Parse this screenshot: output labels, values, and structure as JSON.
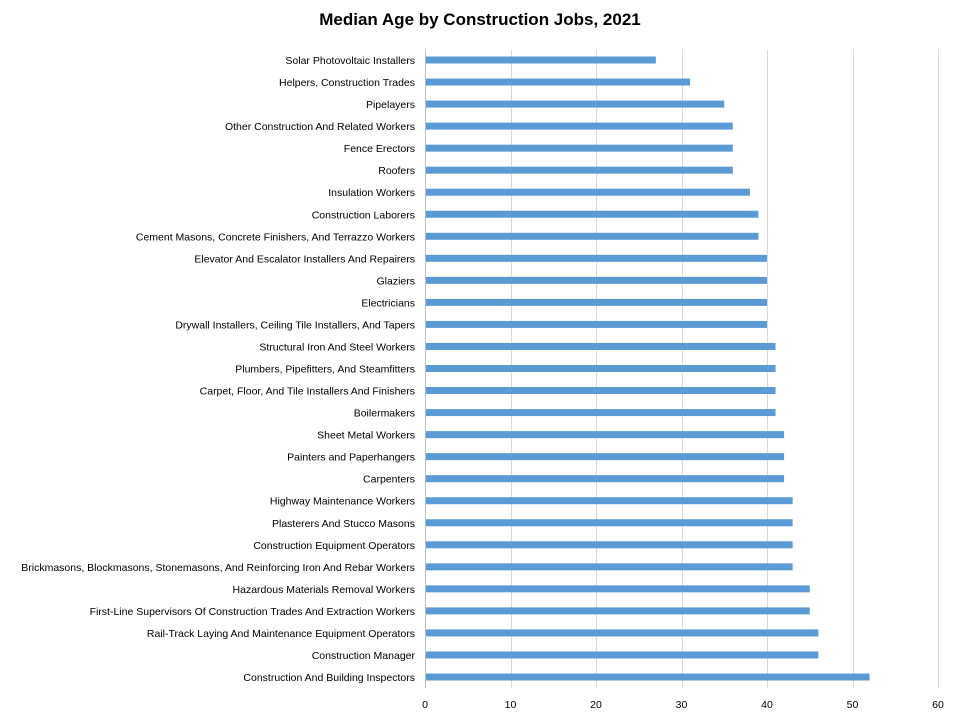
{
  "chart_data": {
    "type": "bar",
    "orientation": "horizontal",
    "title": "Median Age by Construction Jobs, 2021",
    "xlabel": "",
    "ylabel": "",
    "xlim": [
      0,
      60
    ],
    "x_ticks": [
      0,
      10,
      20,
      30,
      40,
      50,
      60
    ],
    "grid": "vertical gridlines",
    "legend": "none",
    "bar_color": "#5b9bd5",
    "gridline_color": "#d9d9d9",
    "categories": [
      "Solar Photovoltaic Installers",
      "Helpers, Construction Trades",
      "Pipelayers",
      "Other Construction And Related Workers",
      "Fence Erectors",
      "Roofers",
      "Insulation Workers",
      "Construction Laborers",
      "Cement Masons, Concrete Finishers, And Terrazzo Workers",
      "Elevator And Escalator Installers And Repairers",
      "Glaziers",
      "Electricians",
      "Drywall Installers, Ceiling Tile Installers, And Tapers",
      "Structural Iron And Steel Workers",
      "Plumbers, Pipefitters, And Steamfitters",
      "Carpet, Floor, And Tile Installers And Finishers",
      "Boilermakers",
      "Sheet Metal Workers",
      "Painters and Paperhangers",
      "Carpenters",
      "Highway Maintenance Workers",
      "Plasterers And Stucco Masons",
      "Construction Equipment Operators",
      "Brickmasons, Blockmasons, Stonemasons, And Reinforcing Iron And Rebar Workers",
      "Hazardous Materials Removal Workers",
      "First-Line Supervisors Of Construction Trades And Extraction Workers",
      "Rail-Track Laying And Maintenance Equipment Operators",
      "Construction Manager",
      "Construction And Building Inspectors"
    ],
    "values": [
      27,
      31,
      35,
      36,
      36,
      36,
      38,
      39,
      39,
      40,
      40,
      40,
      40,
      41,
      41,
      41,
      41,
      42,
      42,
      42,
      43,
      43,
      43,
      43,
      45,
      45,
      46,
      46,
      52
    ]
  }
}
